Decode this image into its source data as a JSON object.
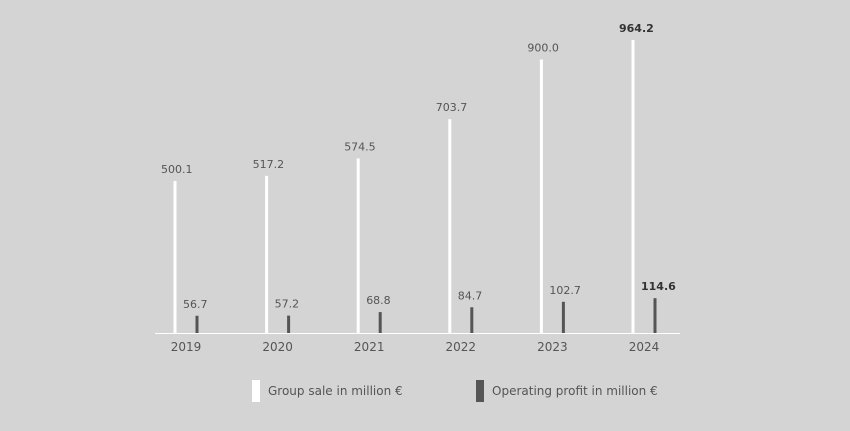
{
  "chart_data": {
    "type": "bar",
    "categories": [
      "2019",
      "2020",
      "2021",
      "2022",
      "2023",
      "2024"
    ],
    "series": [
      {
        "name": "Group sale in million €",
        "values": [
          500.1,
          517.2,
          574.5,
          703.7,
          900.0,
          964.2
        ],
        "labels": [
          "500.1",
          "517.2",
          "574.5",
          "703.7",
          "900.0",
          "964.2"
        ],
        "color": "#ffffff"
      },
      {
        "name": "Operating profit in million €",
        "values": [
          56.7,
          57.2,
          68.8,
          84.7,
          102.7,
          114.6
        ],
        "labels": [
          "56.7",
          "57.2",
          "68.8",
          "84.7",
          "102.7",
          "114.6"
        ],
        "color": "#555555"
      }
    ],
    "highlight_category": "2024",
    "ylim": [
      0,
      1000
    ],
    "grid": false,
    "legend_position": "bottom"
  },
  "colors": {
    "background": "#d4d4d4",
    "baseline": "#ffffff",
    "text": "#555555",
    "highlight_text": "#333333"
  }
}
